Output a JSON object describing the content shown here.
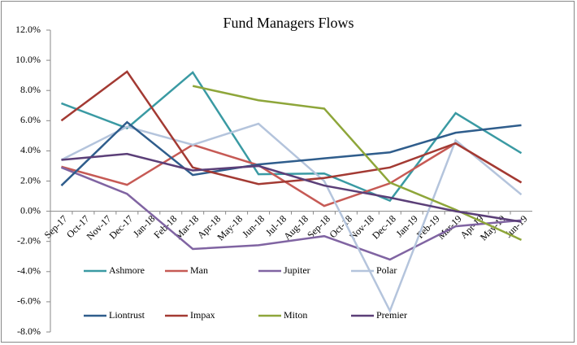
{
  "chart_data": {
    "type": "line",
    "title": "Fund Managers Flows",
    "categories": [
      "Sep-17",
      "Oct-17",
      "Nov-17",
      "Dec-17",
      "Jan-18",
      "Feb-18",
      "Mar-18",
      "Apr-18",
      "May-18",
      "Jun-18",
      "Jul-18",
      "Aug-18",
      "Sep-18",
      "Oct-18",
      "Nov-18",
      "Dec-18",
      "Jan-19",
      "Feb-19",
      "Mar-19",
      "Apr-19",
      "May-19",
      "Jun-19"
    ],
    "x": [
      "Sep-17",
      "Dec-17",
      "Mar-18",
      "Jun-18",
      "Sep-18",
      "Dec-18",
      "Mar-19",
      "Jun-19"
    ],
    "series": [
      {
        "name": "Ashmore",
        "color": "#3a9aa3",
        "values": [
          7.15,
          5.5,
          9.2,
          2.45,
          2.5,
          0.7,
          6.5,
          3.85
        ]
      },
      {
        "name": "Man",
        "color": "#c65a55",
        "values": [
          2.95,
          1.75,
          4.4,
          3.05,
          0.35,
          1.85,
          4.5,
          1.9
        ]
      },
      {
        "name": "Jupiter",
        "color": "#8064a2",
        "values": [
          2.9,
          1.15,
          -2.5,
          -2.25,
          -1.65,
          -3.2,
          -1.0,
          -0.6
        ]
      },
      {
        "name": "Polar",
        "color": "#b4c4dc",
        "values": [
          3.4,
          5.6,
          4.4,
          5.8,
          2.0,
          -6.6,
          4.7,
          1.1
        ]
      },
      {
        "name": "Liontrust",
        "color": "#2f5d8c",
        "values": [
          1.7,
          5.9,
          2.4,
          3.1,
          3.5,
          3.9,
          5.2,
          5.7
        ]
      },
      {
        "name": "Impax",
        "color": "#a33a33",
        "values": [
          6.0,
          9.25,
          2.9,
          1.8,
          2.2,
          2.9,
          4.5,
          1.9
        ]
      },
      {
        "name": "Miton",
        "color": "#8ea63a",
        "values": [
          null,
          null,
          8.3,
          7.35,
          6.8,
          1.9,
          0.1,
          -1.9
        ]
      },
      {
        "name": "Premier",
        "color": "#5b3f78",
        "values": [
          3.4,
          3.8,
          2.7,
          3.0,
          1.7,
          0.9,
          0.0,
          -0.7
        ]
      }
    ],
    "ylim": [
      -8,
      12
    ],
    "yticks": [
      {
        "value": -8,
        "label": "-8.0%"
      },
      {
        "value": -6,
        "label": "-6.0%"
      },
      {
        "value": -4,
        "label": "-4.0%"
      },
      {
        "value": -2,
        "label": "-2.0%"
      },
      {
        "value": 0,
        "label": "0.0%"
      },
      {
        "value": 2,
        "label": "2.0%"
      },
      {
        "value": 4,
        "label": "4.0%"
      },
      {
        "value": 6,
        "label": "6.0%"
      },
      {
        "value": 8,
        "label": "8.0%"
      },
      {
        "value": 10,
        "label": "10.0%"
      },
      {
        "value": 12,
        "label": "12.0%"
      }
    ],
    "grid": false
  }
}
